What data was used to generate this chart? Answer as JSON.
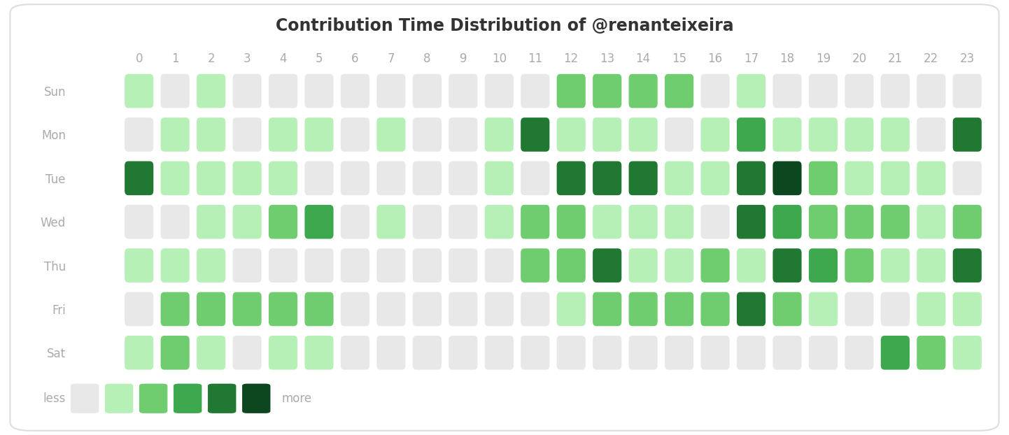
{
  "title": "Contribution Time Distribution of @renanteixeira",
  "days": [
    "Sun",
    "Mon",
    "Tue",
    "Wed",
    "Thu",
    "Fri",
    "Sat"
  ],
  "hours": [
    0,
    1,
    2,
    3,
    4,
    5,
    6,
    7,
    8,
    9,
    10,
    11,
    12,
    13,
    14,
    15,
    16,
    17,
    18,
    19,
    20,
    21,
    22,
    23
  ],
  "grid": [
    [
      1,
      0,
      1,
      0,
      0,
      0,
      0,
      0,
      0,
      0,
      0,
      0,
      2,
      2,
      2,
      2,
      0,
      1,
      0,
      0,
      0,
      0,
      0,
      0
    ],
    [
      0,
      1,
      1,
      0,
      1,
      1,
      0,
      1,
      0,
      0,
      1,
      4,
      1,
      1,
      1,
      0,
      1,
      3,
      1,
      1,
      1,
      1,
      0,
      4
    ],
    [
      4,
      1,
      1,
      1,
      1,
      0,
      0,
      0,
      0,
      0,
      1,
      0,
      4,
      4,
      4,
      1,
      1,
      4,
      5,
      2,
      1,
      1,
      1,
      0
    ],
    [
      0,
      0,
      1,
      1,
      2,
      3,
      0,
      1,
      0,
      0,
      1,
      2,
      2,
      1,
      1,
      1,
      0,
      4,
      3,
      2,
      2,
      2,
      1,
      2
    ],
    [
      1,
      1,
      1,
      0,
      0,
      0,
      0,
      0,
      0,
      0,
      0,
      2,
      2,
      4,
      1,
      1,
      2,
      1,
      4,
      3,
      2,
      1,
      1,
      4
    ],
    [
      0,
      2,
      2,
      2,
      2,
      2,
      0,
      0,
      0,
      0,
      0,
      0,
      1,
      2,
      2,
      2,
      2,
      4,
      2,
      1,
      0,
      0,
      1,
      1
    ],
    [
      1,
      2,
      1,
      0,
      1,
      1,
      0,
      0,
      0,
      0,
      0,
      0,
      0,
      0,
      0,
      0,
      0,
      0,
      0,
      0,
      0,
      3,
      2,
      1
    ]
  ],
  "colors": {
    "0": "#e8e8e8",
    "1": "#b7f0b7",
    "2": "#6fcc6f",
    "3": "#3da84e",
    "4": "#207832",
    "5": "#0d4720"
  },
  "legend_colors": [
    "#e8e8e8",
    "#b7f0b7",
    "#6fcc6f",
    "#3da84e",
    "#207832",
    "#0d4720"
  ],
  "background_color": "#ffffff",
  "title_fontsize": 17,
  "label_fontsize": 12,
  "legend_fontsize": 12,
  "text_color": "#aaaaaa",
  "day_label_color": "#aaaaaa",
  "title_color": "#333333"
}
